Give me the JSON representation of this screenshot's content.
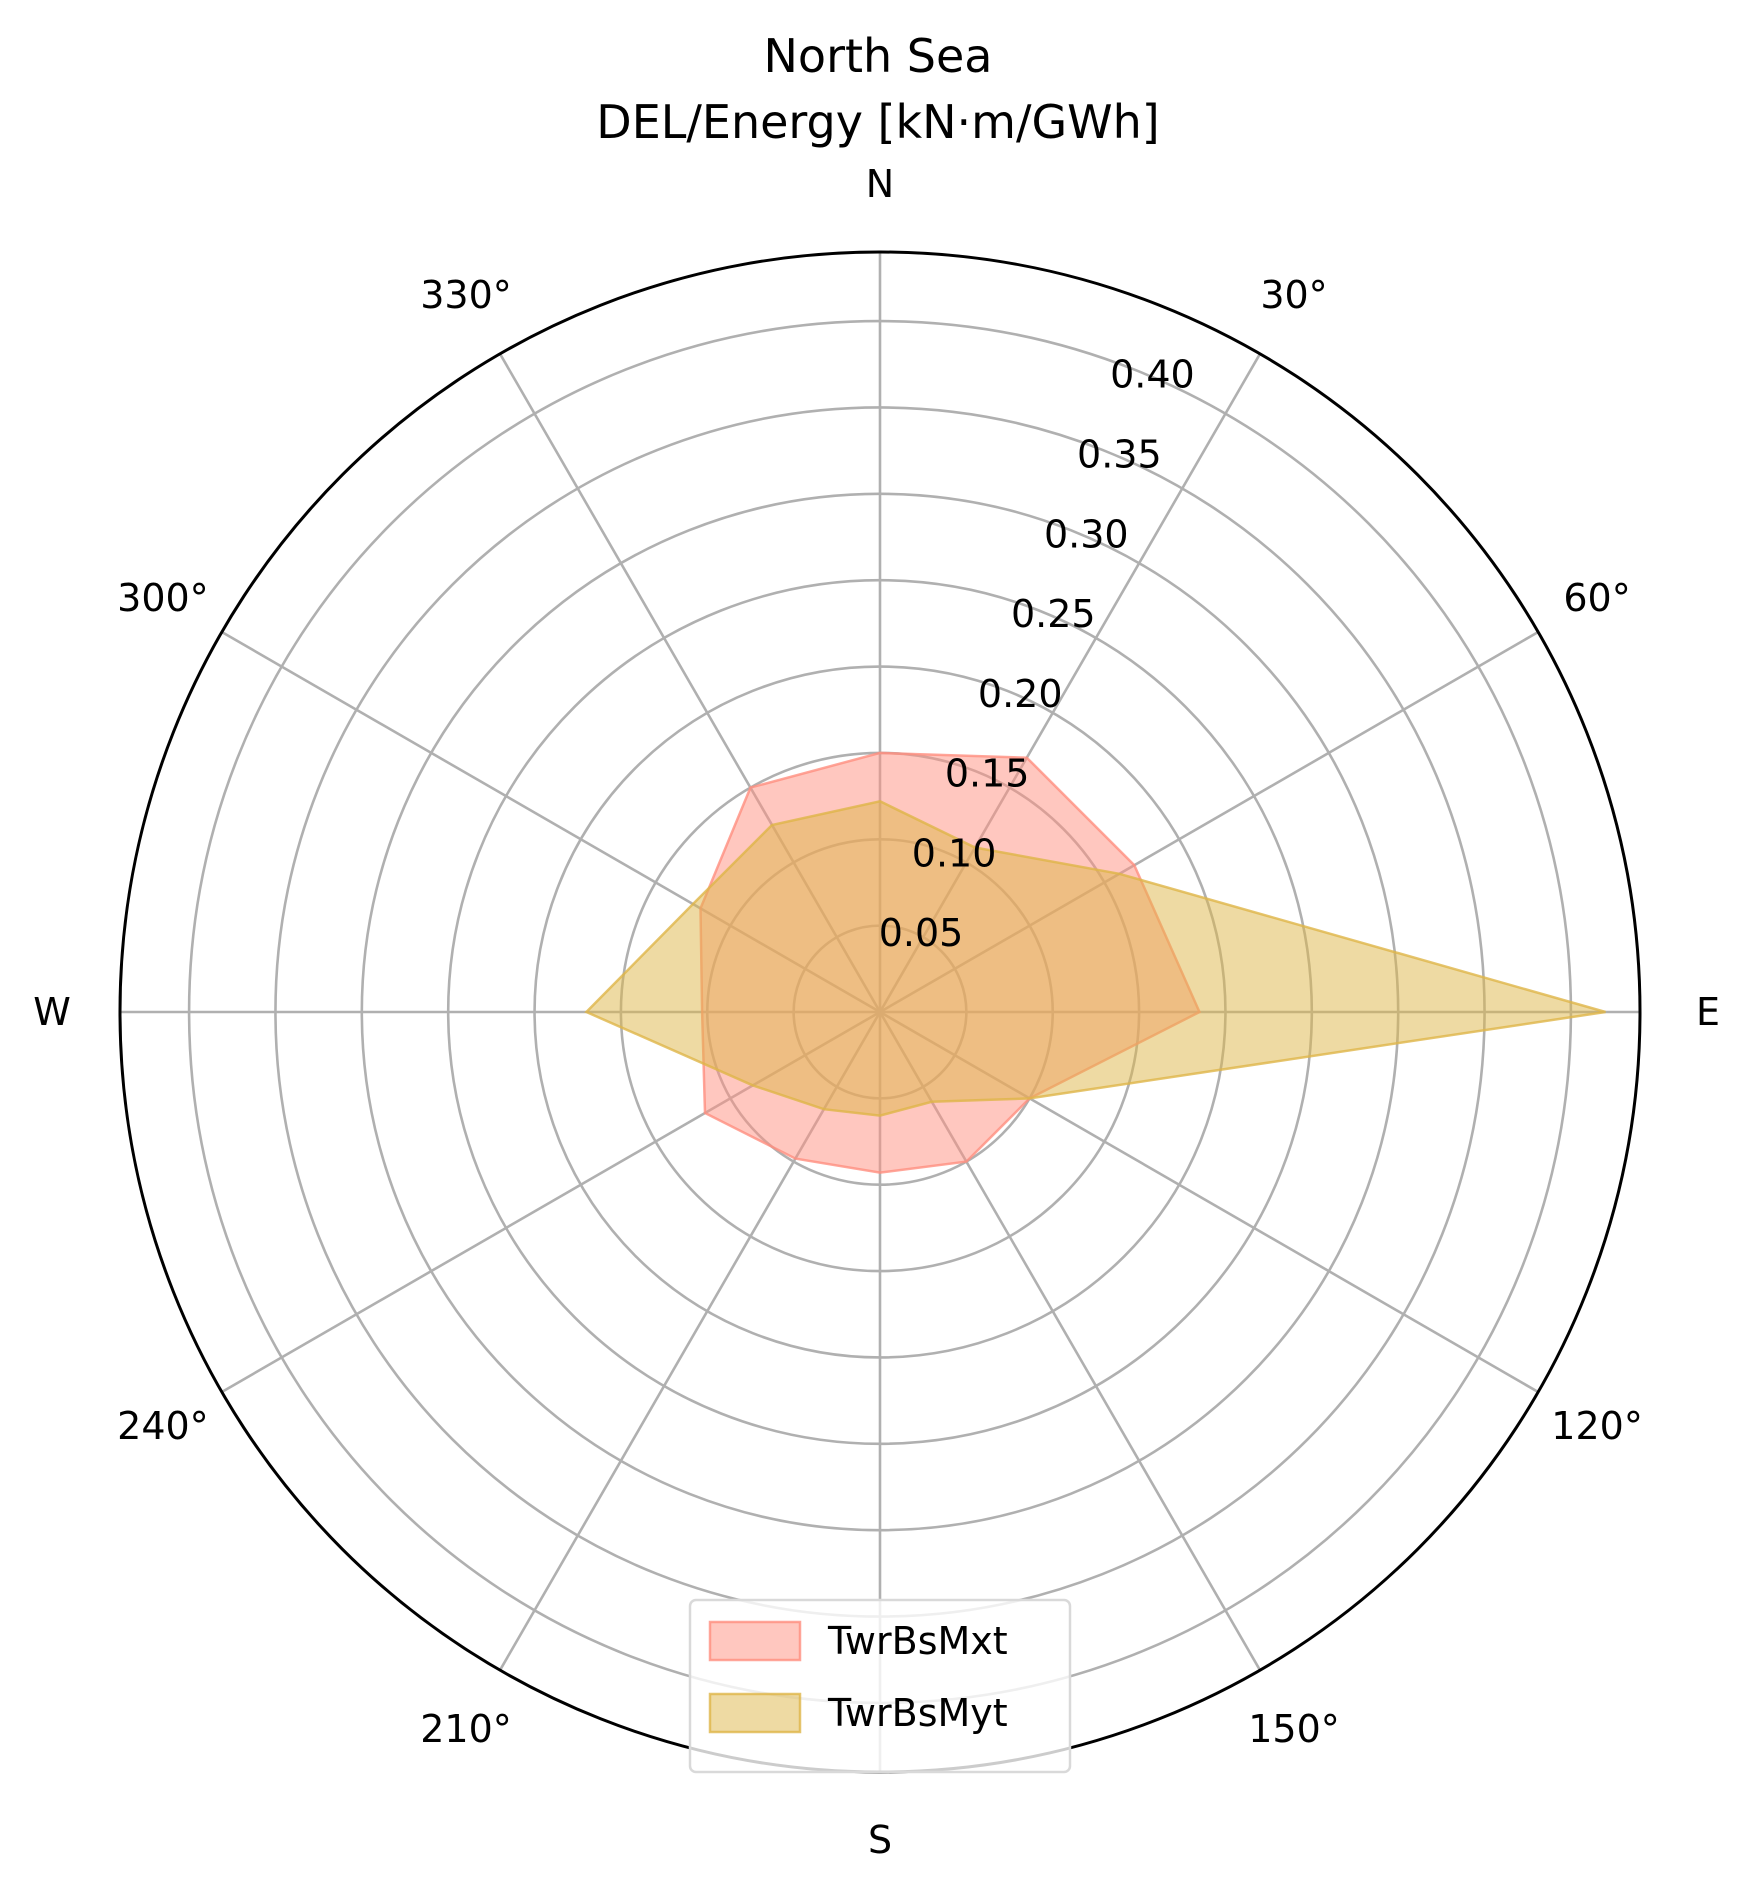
{
  "chart_data": {
    "type": "radar",
    "title": "North Sea",
    "subtitle": "DEL/Energy [kN·m/GWh]",
    "angle_direction": "clockwise",
    "zero_location": "N",
    "angles_deg": [
      0,
      30,
      60,
      90,
      120,
      150,
      180,
      210,
      240,
      270,
      300,
      330
    ],
    "theta_tick_labels": [
      "N",
      "30°",
      "60°",
      "E",
      "120°",
      "150°",
      "S",
      "210°",
      "240°",
      "W",
      "300°",
      "330°"
    ],
    "radial_ticks": [
      0.05,
      0.1,
      0.15,
      0.2,
      0.25,
      0.3,
      0.35,
      0.4
    ],
    "radial_tick_labels": [
      "0.05",
      "0.10",
      "0.15",
      "0.20",
      "0.25",
      "0.30",
      "0.35",
      "0.40"
    ],
    "rlim": [
      0,
      0.44
    ],
    "grid": true,
    "legend_position": "bottom-center",
    "series": [
      {
        "name": "TwrBsMxt",
        "color": "#ff8f80",
        "values": [
          0.15,
          0.17,
          0.17,
          0.185,
          0.1,
          0.1,
          0.093,
          0.098,
          0.117,
          0.103,
          0.12,
          0.15
        ]
      },
      {
        "name": "TwrBsMyt",
        "color": "#deb548",
        "values": [
          0.122,
          0.11,
          0.16,
          0.42,
          0.1,
          0.06,
          0.06,
          0.065,
          0.085,
          0.17,
          0.125,
          0.125
        ]
      }
    ]
  }
}
